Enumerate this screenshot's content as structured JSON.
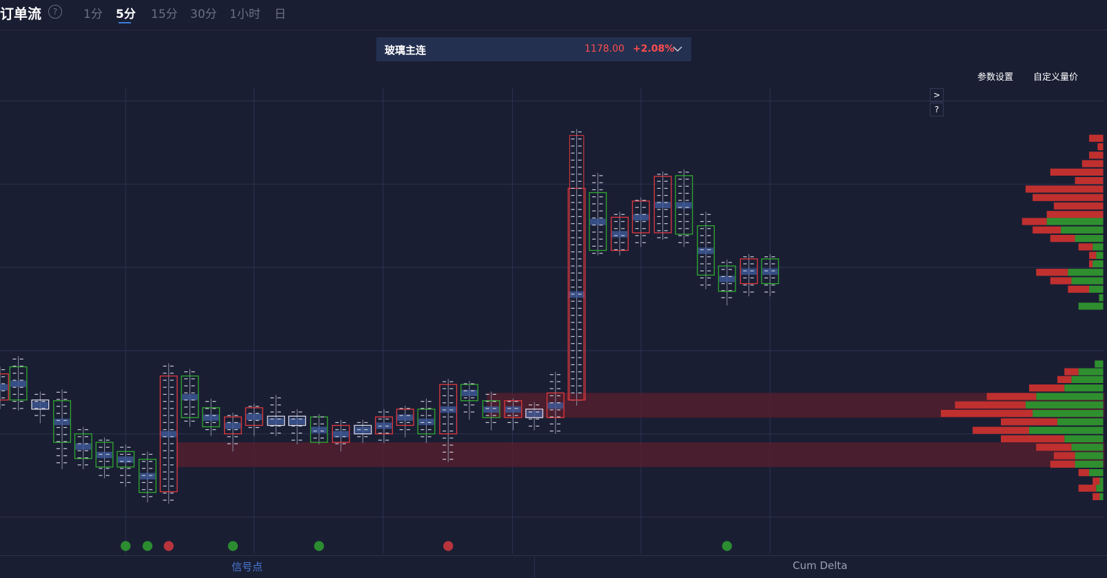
{
  "header": {
    "title": "订单流",
    "help": "?",
    "tabs": [
      "1分",
      "5分",
      "15分",
      "30分",
      "1小时",
      "日"
    ],
    "active_tab": "5分"
  },
  "instrument": {
    "name": "玻璃主连",
    "price": "1178.00",
    "change": "+2.08%"
  },
  "toolbar": {
    "settings": "参数设置",
    "custom": "自定义量价"
  },
  "side_buttons": [
    ">",
    "?"
  ],
  "footer_tabs": [
    "信号点",
    "Cum Delta"
  ]
}
